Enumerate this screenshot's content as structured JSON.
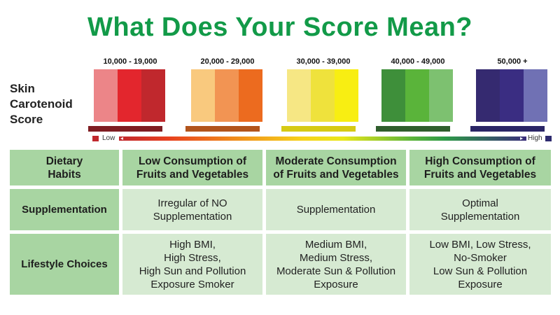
{
  "title": "What Does Your Score Mean?",
  "side_label": [
    "Skin",
    "Carotenoid",
    "Score"
  ],
  "score_groups": [
    {
      "range": "10,000 - 19,000",
      "colors": [
        "#ec8588",
        "#e3262d",
        "#c0282d"
      ],
      "shelf": "#7f1d22"
    },
    {
      "range": "20,000 - 29,000",
      "colors": [
        "#f9c97e",
        "#f29453",
        "#ec6b1f"
      ],
      "shelf": "#b2541c"
    },
    {
      "range": "30,000 - 39,000",
      "colors": [
        "#f6e784",
        "#efe23c",
        "#f8ee12"
      ],
      "shelf": "#d6ca14"
    },
    {
      "range": "40,000 - 49,000",
      "colors": [
        "#3e8f3a",
        "#5ab43a",
        "#7dc170"
      ],
      "shelf": "#2f5e2c"
    },
    {
      "range": "50,000 +",
      "colors": [
        "#352a70",
        "#3a2d82",
        "#7071b4"
      ],
      "shelf": "#2a2566"
    }
  ],
  "scale": {
    "low": "Low",
    "high": "High"
  },
  "table": {
    "headers": [
      [
        "Dietary",
        "Habits"
      ],
      [
        "Low Consumption of",
        "Fruits and Vegetables"
      ],
      [
        "Moderate Consumption",
        "of Fruits and Vegetables"
      ],
      [
        "High Consumption of",
        "Fruits and Vegetables"
      ]
    ],
    "rows": [
      {
        "label": [
          "Supplementation"
        ],
        "cells": [
          [
            "Irregular of NO",
            "Supplementation"
          ],
          [
            "Supplementation"
          ],
          [
            "Optimal",
            "Supplementation"
          ]
        ]
      },
      {
        "label": [
          "Lifestyle Choices"
        ],
        "cells": [
          [
            "High BMI,",
            "High Stress,",
            "High Sun and Pollution",
            "Exposure Smoker"
          ],
          [
            "Medium BMI,",
            "Medium Stress,",
            "Moderate Sun & Pollution",
            "Exposure"
          ],
          [
            "Low BMI, Low Stress,",
            "No-Smoker",
            "Low Sun & Pollution",
            "Exposure"
          ]
        ]
      }
    ]
  }
}
